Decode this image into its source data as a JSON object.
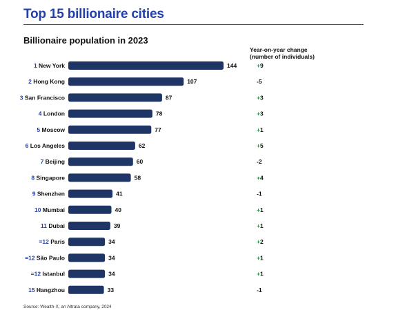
{
  "header": {
    "title": "Top 15 billionaire cities",
    "subtitle": "Billionaire population in 2023",
    "change_title_line1": "Year-on-year change",
    "change_title_line2": "(number of individuals)"
  },
  "footer": {
    "source": "Source: Wealth-X, an Altrata company, 2024"
  },
  "colors": {
    "bar": "#1e3566",
    "rank": "#2340a8",
    "title": "#2340a8",
    "positive_sign": "#2a9a4a"
  },
  "chart_data": {
    "type": "bar",
    "orientation": "horizontal",
    "title": "Billionaire population in 2023",
    "ranks": [
      "1",
      "2",
      "3",
      "4",
      "5",
      "6",
      "7",
      "8",
      "9",
      "10",
      "11",
      "=12",
      "=12",
      "=12",
      "15"
    ],
    "categories": [
      "New York",
      "Hong Kong",
      "San Francisco",
      "London",
      "Moscow",
      "Los Angeles",
      "Beijing",
      "Singapore",
      "Shenzhen",
      "Mumbai",
      "Dubai",
      "Paris",
      "São Paulo",
      "Istanbul",
      "Hangzhou"
    ],
    "values": [
      144,
      107,
      87,
      78,
      77,
      62,
      60,
      58,
      41,
      40,
      39,
      34,
      34,
      34,
      33
    ],
    "yoy_change": [
      {
        "sign": "+",
        "value": "9"
      },
      {
        "sign": "-",
        "value": "5"
      },
      {
        "sign": "+",
        "value": "3"
      },
      {
        "sign": "+",
        "value": "3"
      },
      {
        "sign": "+",
        "value": "1"
      },
      {
        "sign": "+",
        "value": "5"
      },
      {
        "sign": "-",
        "value": "2"
      },
      {
        "sign": "+",
        "value": "4"
      },
      {
        "sign": "-",
        "value": "1"
      },
      {
        "sign": "+",
        "value": "1"
      },
      {
        "sign": "+",
        "value": "1"
      },
      {
        "sign": "+",
        "value": "2"
      },
      {
        "sign": "+",
        "value": "1"
      },
      {
        "sign": "+",
        "value": "1"
      },
      {
        "sign": "-",
        "value": "1"
      }
    ],
    "value_max": 144
  }
}
